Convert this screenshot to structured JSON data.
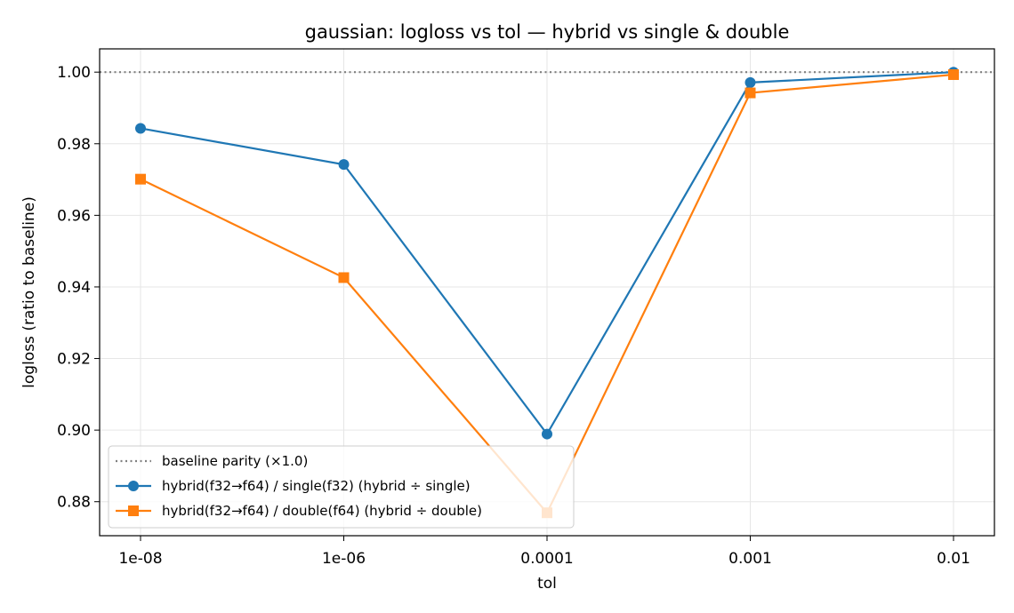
{
  "chart_data": {
    "type": "line",
    "title": "gaussian: logloss vs tol — hybrid vs single & double",
    "xlabel": "tol",
    "ylabel": "logloss (ratio to baseline)",
    "categories": [
      "1e-08",
      "1e-06",
      "0.0001",
      "0.001",
      "0.01"
    ],
    "ylim": [
      0.8705,
      1.0065
    ],
    "yticks": [
      "0.88",
      "0.90",
      "0.92",
      "0.94",
      "0.96",
      "0.98",
      "1.00"
    ],
    "ytick_values": [
      0.88,
      0.9,
      0.92,
      0.94,
      0.96,
      0.98,
      1.0
    ],
    "grid": true,
    "legend_position": "lower-left",
    "reference_line": {
      "name": "baseline parity (×1.0)",
      "value": 1.0,
      "color": "#808080",
      "style": "dotted"
    },
    "series": [
      {
        "name": "hybrid(f32→f64) / single(f32)  (hybrid ÷ single)",
        "values": [
          0.9843,
          0.9742,
          0.8989,
          0.9971,
          1.0
        ],
        "color": "#1f77b4",
        "marker": "circle"
      },
      {
        "name": "hybrid(f32→f64) / double(f64)  (hybrid ÷ double)",
        "values": [
          0.9701,
          0.9426,
          0.8769,
          0.9942,
          0.9993
        ],
        "color": "#ff7f0e",
        "marker": "square"
      }
    ]
  }
}
